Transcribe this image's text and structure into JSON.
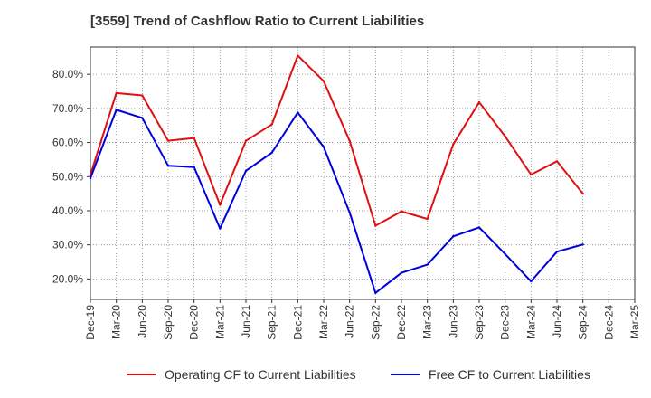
{
  "chart_data": {
    "type": "line",
    "title": "[3559]  Trend of Cashflow Ratio to Current Liabilities",
    "xlabel": "",
    "ylabel": "",
    "categories": [
      "Dec-19",
      "Mar-20",
      "Jun-20",
      "Sep-20",
      "Dec-20",
      "Mar-21",
      "Jun-21",
      "Sep-21",
      "Dec-21",
      "Mar-22",
      "Jun-22",
      "Sep-22",
      "Dec-22",
      "Mar-23",
      "Jun-23",
      "Sep-23",
      "Dec-23",
      "Mar-24",
      "Jun-24",
      "Sep-24",
      "Dec-24",
      "Mar-25"
    ],
    "ylim": [
      14,
      88
    ],
    "yticks": [
      20,
      30,
      40,
      50,
      60,
      70,
      80
    ],
    "ytick_labels": [
      "20.0%",
      "30.0%",
      "40.0%",
      "50.0%",
      "60.0%",
      "70.0%",
      "80.0%"
    ],
    "grid": true,
    "legend_position": "bottom",
    "series": [
      {
        "name": "Operating CF to Current Liabilities",
        "color": "#dd1111",
        "values": [
          50.5,
          74.5,
          73.8,
          60.5,
          61.3,
          41.7,
          60.5,
          65.3,
          85.5,
          78.0,
          60.5,
          35.6,
          39.8,
          37.6,
          59.5,
          71.8,
          61.8,
          50.6,
          54.5,
          45.0,
          null,
          null
        ]
      },
      {
        "name": "Free CF to Current Liabilities",
        "color": "#0000dd",
        "values": [
          49.5,
          69.6,
          67.2,
          53.2,
          52.8,
          34.8,
          51.7,
          57.0,
          68.8,
          58.7,
          39.5,
          15.9,
          21.8,
          24.2,
          32.5,
          35.1,
          27.3,
          19.3,
          28.0,
          30.1,
          null,
          null
        ]
      }
    ]
  }
}
